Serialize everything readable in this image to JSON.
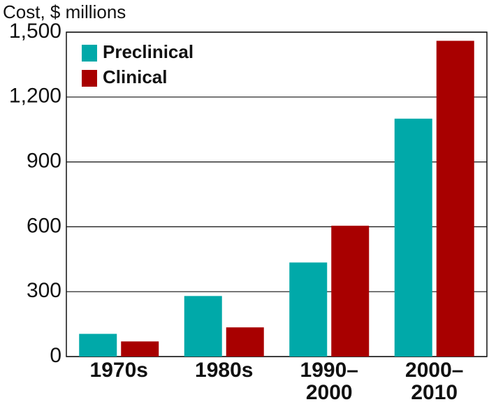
{
  "chart_data": {
    "type": "bar",
    "y_label": "Cost, $ millions",
    "categories": [
      "1970s",
      "1980s",
      "1990–2000",
      "2000–2010"
    ],
    "series": [
      {
        "name": "Preclinical",
        "color": "#00a9a9",
        "values": [
          105,
          280,
          435,
          1100
        ]
      },
      {
        "name": "Clinical",
        "color": "#a80000",
        "values": [
          70,
          135,
          605,
          1460
        ]
      }
    ],
    "ylim": [
      0,
      1500
    ],
    "yticks": [
      0,
      300,
      600,
      900,
      {
        "value": 1200,
        "label": "1,200"
      },
      {
        "value": 1500,
        "label": "1,500"
      }
    ],
    "grid": true,
    "legend": "top-left"
  }
}
